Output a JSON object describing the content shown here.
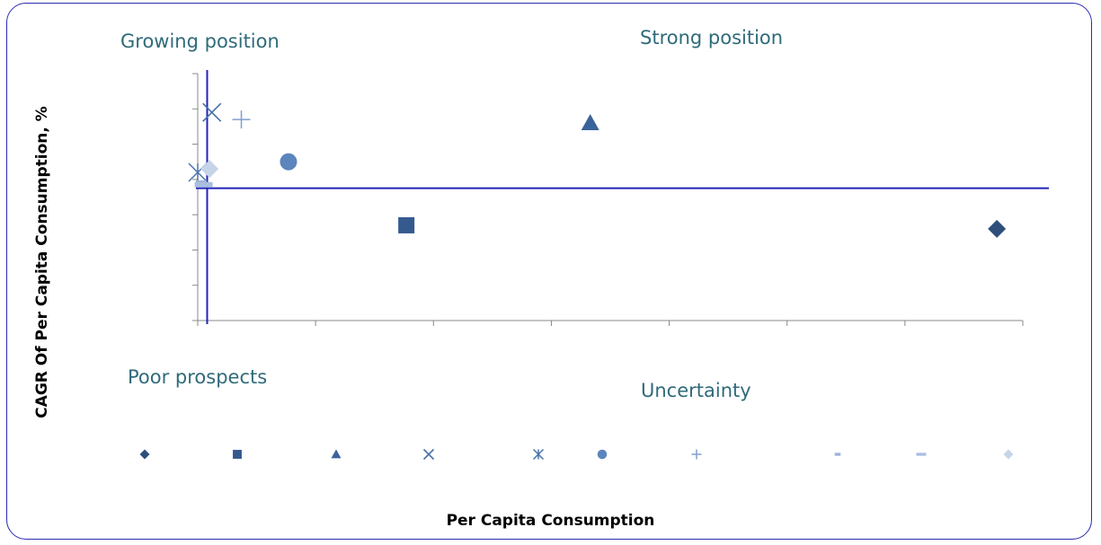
{
  "quadrants": {
    "top_left": "Growing position",
    "top_right": "Strong position",
    "bottom_left": "Poor prospects",
    "bottom_right": "Uncertainty"
  },
  "chart_data": {
    "type": "scatter",
    "xlabel": "Per Capita Consumption",
    "ylabel": "CAGR Of Per Capita Consumption, %",
    "xlim": [
      0,
      7
    ],
    "ylim": [
      0,
      7
    ],
    "x_ticks": 7,
    "y_ticks": 7,
    "grid": false,
    "reference_lines": {
      "x": 0.08,
      "y": 3.75
    },
    "legend_placement": "bottom",
    "series": [
      {
        "marker": "diamond",
        "color": "#2e4f7c",
        "x": 6.78,
        "y": 2.6
      },
      {
        "marker": "square",
        "color": "#355a8f",
        "x": 1.77,
        "y": 2.7
      },
      {
        "marker": "triangle",
        "color": "#3b639b",
        "x": 3.33,
        "y": 5.6
      },
      {
        "marker": "x",
        "color": "#4670a8",
        "x": 0.12,
        "y": 5.9
      },
      {
        "marker": "star",
        "color": "#4a74ab",
        "x": 0.0,
        "y": 4.2
      },
      {
        "marker": "circle",
        "color": "#5b85bd",
        "x": 0.77,
        "y": 4.5
      },
      {
        "marker": "plus",
        "color": "#7f9fcf",
        "x": 0.37,
        "y": 5.7
      },
      {
        "marker": "dash",
        "color": "#9cb4d8",
        "x": 0.03,
        "y": 3.9
      },
      {
        "marker": "dash-long",
        "color": "#aabedf",
        "x": 0.05,
        "y": 3.85
      },
      {
        "marker": "diamond",
        "color": "#c6d4ea",
        "x": 0.1,
        "y": 4.3
      }
    ]
  }
}
